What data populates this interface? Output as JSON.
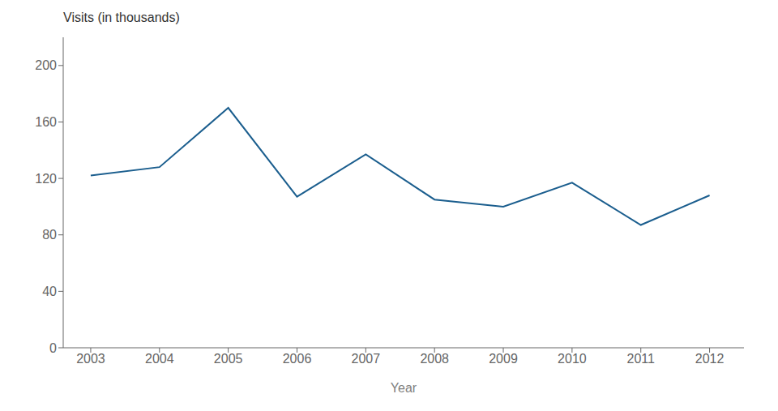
{
  "chart_data": {
    "type": "line",
    "x": [
      2003,
      2004,
      2005,
      2006,
      2007,
      2008,
      2009,
      2010,
      2011,
      2012
    ],
    "values": [
      122,
      128,
      170,
      107,
      137,
      105,
      100,
      117,
      87,
      108
    ],
    "color": "#1b5e8e",
    "xlabel": "Year",
    "ylabel": "Visits (in thousands)",
    "xlim": [
      2002.6,
      2012.5
    ],
    "xticks": [
      2003,
      2004,
      2005,
      2006,
      2007,
      2008,
      2009,
      2010,
      2011,
      2012
    ],
    "ylim": [
      0,
      220
    ],
    "yticks": [
      0,
      40,
      80,
      120,
      160,
      200
    ],
    "grid": false
  }
}
